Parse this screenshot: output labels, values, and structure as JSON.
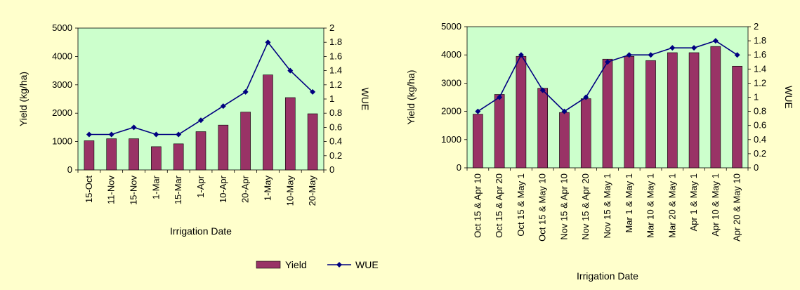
{
  "colors": {
    "background": "#ffffcc",
    "plot_bg": "#ccffcc",
    "bar": "#993366",
    "line": "#000080"
  },
  "legend": {
    "yield_label": "Yield",
    "wue_label": "WUE"
  },
  "chart_data": [
    {
      "type": "bar+line",
      "title": "",
      "xlabel": "Irrigation Date",
      "ylabel": "Yield (kg/ha)",
      "y2label": "WUE",
      "ylim": [
        0,
        5000
      ],
      "y2lim": [
        0,
        2
      ],
      "yticks": [
        "0",
        "1000",
        "2000",
        "3000",
        "4000",
        "5000"
      ],
      "y2ticks": [
        "0",
        "0.2",
        "0.4",
        "0.6",
        "0.8",
        "1",
        "1.2",
        "1.4",
        "1.6",
        "1.8",
        "2"
      ],
      "categories": [
        "15-Oct",
        "11-Nov",
        "15-Nov",
        "1-Mar",
        "15-Mar",
        "1-Apr",
        "10-Apr",
        "20-Apr",
        "1-May",
        "10-May",
        "20-May"
      ],
      "series": [
        {
          "name": "Yield",
          "type": "bar",
          "axis": "left",
          "values": [
            1030,
            1100,
            1100,
            820,
            920,
            1350,
            1580,
            2040,
            3350,
            2550,
            1980
          ]
        },
        {
          "name": "WUE",
          "type": "line",
          "axis": "right",
          "values": [
            0.5,
            0.5,
            0.6,
            0.5,
            0.5,
            0.7,
            0.9,
            1.1,
            1.8,
            1.4,
            1.1
          ]
        }
      ]
    },
    {
      "type": "bar+line",
      "title": "",
      "xlabel": "Irrigation Date",
      "ylabel": "Yield (kg/ha)",
      "y2label": "WUE",
      "ylim": [
        0,
        5000
      ],
      "y2lim": [
        0,
        2
      ],
      "yticks": [
        "0",
        "1000",
        "2000",
        "3000",
        "4000",
        "5000"
      ],
      "y2ticks": [
        "0",
        "0.2",
        "0.4",
        "0.6",
        "0.8",
        "1",
        "1.2",
        "1.4",
        "1.6",
        "1.8",
        "2"
      ],
      "categories": [
        "Oct 15 & Apr 10",
        "Oct 15 & Apr 20",
        "Oct 15 & May 1",
        "Oct 15 & May 10",
        "Nov 15 & Apr 10",
        "Nov 15 & Apr 20",
        "Nov 15 & May 1",
        "Mar 1 & May 1",
        "Mar 10 & May 1",
        "Mar 20 & May 1",
        "Apr 1 & May 1",
        "Apr 10 & May 1",
        "Apr 20 & May 10"
      ],
      "series": [
        {
          "name": "Yield",
          "type": "bar",
          "axis": "left",
          "values": [
            1900,
            2600,
            3950,
            2820,
            1960,
            2450,
            3850,
            3950,
            3800,
            4080,
            4080,
            4300,
            3600
          ]
        },
        {
          "name": "WUE",
          "type": "line",
          "axis": "right",
          "values": [
            0.8,
            1.0,
            1.6,
            1.1,
            0.8,
            1.0,
            1.5,
            1.6,
            1.6,
            1.7,
            1.7,
            1.8,
            1.6
          ]
        }
      ]
    }
  ]
}
